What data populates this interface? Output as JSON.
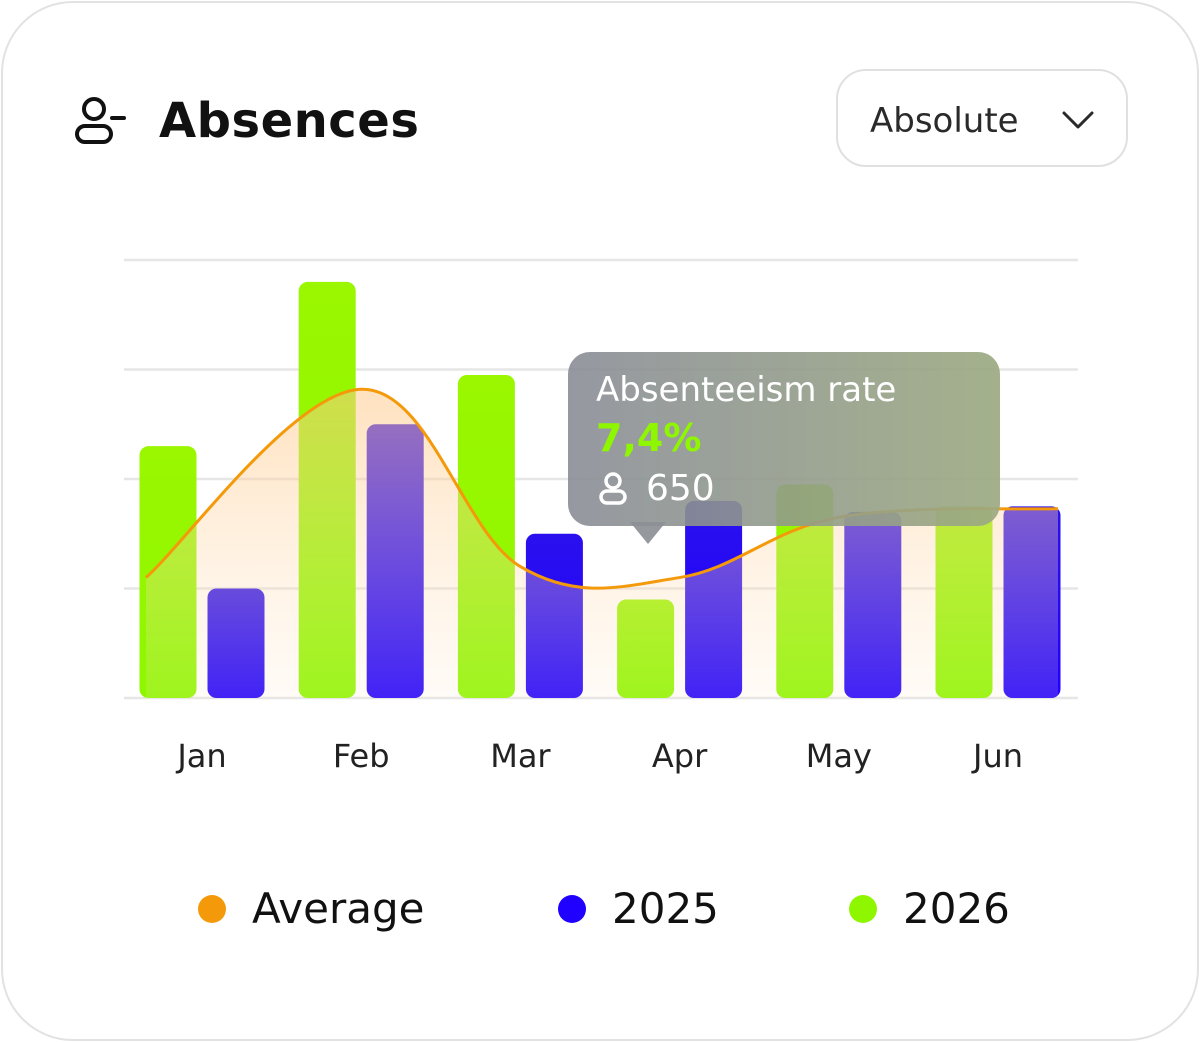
{
  "header": {
    "title": "Absences",
    "icon": "user-minus-icon"
  },
  "dropdown": {
    "selected": "Absolute",
    "icon": "chevron-down-icon"
  },
  "tooltip": {
    "title": "Absenteeism rate",
    "value": "7,4%",
    "count": "650",
    "count_icon": "user-icon"
  },
  "legend": {
    "items": [
      {
        "label": "Average",
        "color": "#f49a0a"
      },
      {
        "label": "2025",
        "color": "#2000ff"
      },
      {
        "label": "2026",
        "color": "#8ef700"
      }
    ]
  },
  "chart_data": {
    "type": "bar",
    "categories": [
      "Jan",
      "Feb",
      "Mar",
      "Apr",
      "May",
      "Jun"
    ],
    "series": [
      {
        "name": "2026",
        "color": "#8ef700",
        "values": [
          2.3,
          3.8,
          2.95,
          0.9,
          1.95,
          1.75
        ]
      },
      {
        "name": "2025",
        "color": "#2000ff",
        "values": [
          1.0,
          2.5,
          1.5,
          1.8,
          1.7,
          1.75
        ]
      },
      {
        "name": "Average",
        "type": "line",
        "color": "#f49a0a",
        "values": [
          1.1,
          2.82,
          1.2,
          1.1,
          1.65,
          1.73
        ]
      }
    ],
    "ylim": [
      0,
      4
    ],
    "grid": true,
    "legend_position": "bottom"
  }
}
